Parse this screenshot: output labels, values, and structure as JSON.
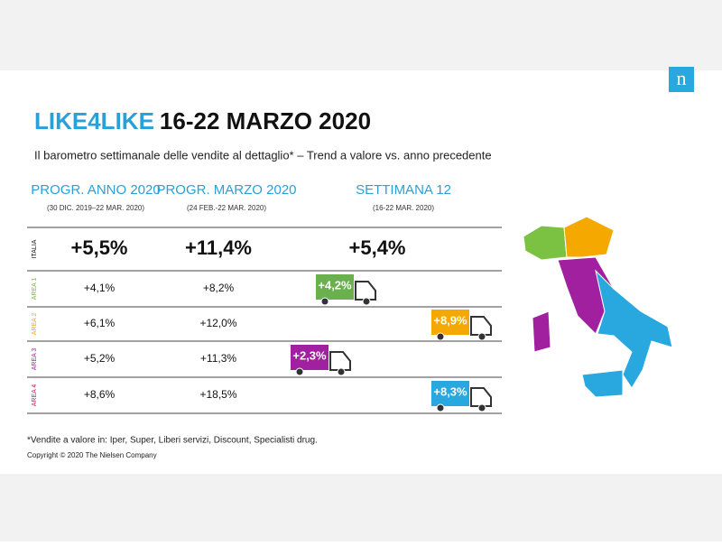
{
  "header": {
    "logo": "n",
    "title_brand": "LIKE4LIKE",
    "title_date": "16-22 MARZO 2020",
    "subtitle": "Il barometro settimanale delle vendite al dettaglio* – Trend a valore vs. anno precedente"
  },
  "columns": [
    {
      "title": "PROGR. ANNO 2020",
      "subtitle": "(30 DIC. 2019–22 MAR. 2020)"
    },
    {
      "title": "PROGR. MARZO 2020",
      "subtitle": "(24 FEB.-22 MAR. 2020)"
    },
    {
      "title": "SETTIMANA 12",
      "subtitle": "(16-22 MAR. 2020)"
    }
  ],
  "rows": [
    {
      "label": "ITALIA",
      "values": [
        "+5,5%",
        "+11,4%",
        "+5,4%"
      ]
    },
    {
      "label": "AREA 1",
      "values": [
        "+4,1%",
        "+8,2%",
        "+4,2%"
      ]
    },
    {
      "label": "AREA 2",
      "values": [
        "+6,1%",
        "+12,0%",
        "+8,9%"
      ]
    },
    {
      "label": "AREA 3",
      "values": [
        "+5,2%",
        "+11,3%",
        "+2,3%"
      ]
    },
    {
      "label": "AREA 4",
      "values": [
        "+8,6%",
        "+18,5%",
        "+8,3%"
      ]
    }
  ],
  "footnote": "*Vendite a valore in: Iper, Super, Liberi servizi, Discount, Specialisti drug.",
  "copyright": "Copyright © 2020 The Nielsen Company"
}
